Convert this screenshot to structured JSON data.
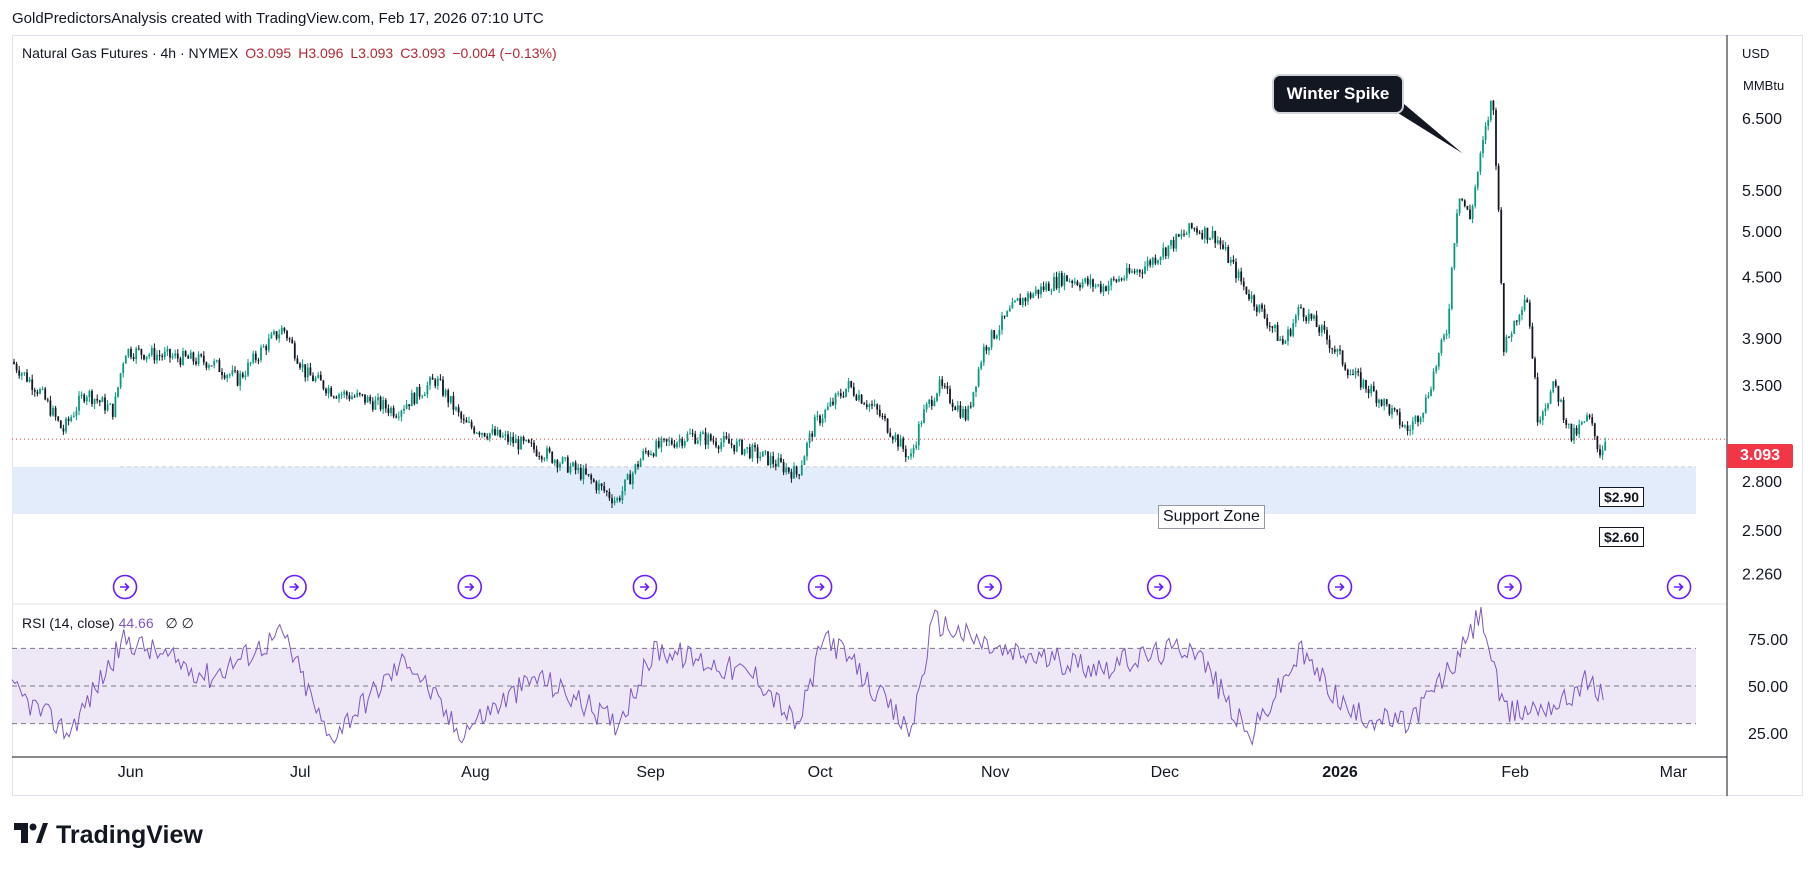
{
  "header": {
    "caption": "GoldPredictorsAnalysis created with TradingView.com, Feb 17, 2026 07:10 UTC"
  },
  "legend": {
    "symbol": "Natural Gas Futures · 4h · NYMEX",
    "open": "O3.095",
    "high": "H3.096",
    "low": "L3.093",
    "close": "C3.093",
    "change": "−0.004 (−0.13%)"
  },
  "axis": {
    "currency": "USD",
    "unit": "MMBtu",
    "current_price": "3.093"
  },
  "annotations": {
    "winter_spike": "Winter Spike",
    "support_zone": "Support Zone",
    "support_top": "$2.90",
    "support_bottom": "$2.60"
  },
  "rsi_legend": {
    "name": "RSI (14, close)",
    "value": "44.66",
    "extra": "∅ ∅"
  },
  "footer": {
    "brand": "TradingView"
  },
  "colors": {
    "candle_up": "#089981",
    "candle_down": "#131722",
    "rsi_line": "#7e57c2",
    "rsi_band": "#ede7f6",
    "support_zone": "#e3ecfb",
    "current_price": "#f23645",
    "event_icon": "#6a1bff"
  },
  "chart_data": [
    {
      "type": "candlestick",
      "title": "Natural Gas Futures · 4h · NYMEX",
      "x_range": [
        "2025-05-11",
        "2026-03-05"
      ],
      "y_scale": "log",
      "ylim": [
        2.26,
        7.0
      ],
      "y_ticks": [
        2.26,
        2.5,
        2.8,
        3.093,
        3.5,
        3.9,
        4.5,
        5.0,
        5.5,
        6.5
      ],
      "y_tick_labels": [
        "2.260",
        "2.500",
        "2.800",
        "3.093",
        "3.500",
        "3.900",
        "4.500",
        "5.000",
        "5.500",
        "6.500"
      ],
      "x_ticks": [
        {
          "label": "Jun",
          "date": "2025-06-01"
        },
        {
          "label": "Jul",
          "date": "2025-07-01"
        },
        {
          "label": "Aug",
          "date": "2025-08-01"
        },
        {
          "label": "Sep",
          "date": "2025-09-01"
        },
        {
          "label": "Oct",
          "date": "2025-10-01"
        },
        {
          "label": "Nov",
          "date": "2025-11-01"
        },
        {
          "label": "Dec",
          "date": "2025-12-01"
        },
        {
          "label": "2026",
          "date": "2026-01-01"
        },
        {
          "label": "Feb",
          "date": "2026-02-01"
        },
        {
          "label": "Mar",
          "date": "2026-03-01"
        }
      ],
      "price_path": [
        [
          "2025-05-11",
          3.7
        ],
        [
          "2025-05-16",
          3.45
        ],
        [
          "2025-05-20",
          3.15
        ],
        [
          "2025-05-24",
          3.45
        ],
        [
          "2025-05-29",
          3.3
        ],
        [
          "2025-05-31",
          3.8
        ],
        [
          "2025-06-07",
          3.75
        ],
        [
          "2025-06-15",
          3.7
        ],
        [
          "2025-06-20",
          3.55
        ],
        [
          "2025-06-25",
          3.85
        ],
        [
          "2025-06-28",
          4.0
        ],
        [
          "2025-07-02",
          3.6
        ],
        [
          "2025-07-07",
          3.45
        ],
        [
          "2025-07-12",
          3.4
        ],
        [
          "2025-07-18",
          3.3
        ],
        [
          "2025-07-25",
          3.55
        ],
        [
          "2025-07-30",
          3.2
        ],
        [
          "2025-08-06",
          3.1
        ],
        [
          "2025-08-13",
          3.0
        ],
        [
          "2025-08-20",
          2.85
        ],
        [
          "2025-08-26",
          2.68
        ],
        [
          "2025-08-31",
          3.0
        ],
        [
          "2025-09-08",
          3.12
        ],
        [
          "2025-09-16",
          3.05
        ],
        [
          "2025-09-22",
          2.95
        ],
        [
          "2025-09-27",
          2.85
        ],
        [
          "2025-09-30",
          3.2
        ],
        [
          "2025-10-06",
          3.5
        ],
        [
          "2025-10-11",
          3.3
        ],
        [
          "2025-10-17",
          2.95
        ],
        [
          "2025-10-19",
          3.25
        ],
        [
          "2025-10-22",
          3.5
        ],
        [
          "2025-10-27",
          3.25
        ],
        [
          "2025-10-30",
          3.82
        ],
        [
          "2025-11-05",
          4.25
        ],
        [
          "2025-11-13",
          4.5
        ],
        [
          "2025-11-20",
          4.4
        ],
        [
          "2025-11-27",
          4.6
        ],
        [
          "2025-12-06",
          5.05
        ],
        [
          "2025-12-10",
          4.95
        ],
        [
          "2025-12-15",
          4.4
        ],
        [
          "2025-12-22",
          3.85
        ],
        [
          "2025-12-25",
          4.2
        ],
        [
          "2025-12-29",
          3.95
        ],
        [
          "2026-01-03",
          3.6
        ],
        [
          "2026-01-08",
          3.4
        ],
        [
          "2026-01-13",
          3.15
        ],
        [
          "2026-01-16",
          3.35
        ],
        [
          "2026-01-20",
          4.0
        ],
        [
          "2026-01-22",
          5.5
        ],
        [
          "2026-01-24",
          5.15
        ],
        [
          "2026-01-26",
          6.0
        ],
        [
          "2026-01-28",
          6.85
        ],
        [
          "2026-01-30",
          3.8
        ],
        [
          "2026-02-03",
          4.35
        ],
        [
          "2026-02-05",
          3.25
        ],
        [
          "2026-02-08",
          3.5
        ],
        [
          "2026-02-11",
          3.1
        ],
        [
          "2026-02-14",
          3.25
        ],
        [
          "2026-02-16",
          3.0
        ],
        [
          "2026-02-17",
          3.093
        ]
      ],
      "horizontal_lines": [
        {
          "value": 3.093,
          "style": "dotted",
          "label": "3.093"
        }
      ],
      "zones": [
        {
          "name": "Support Zone",
          "from": 2.6,
          "to": 2.9
        }
      ]
    },
    {
      "type": "line",
      "title": "RSI (14, close)",
      "ylim": [
        15,
        95
      ],
      "y_ticks": [
        25,
        50,
        75
      ],
      "band": [
        30,
        70
      ],
      "current": 44.66,
      "x": [
        "2025-05-11",
        "2025-05-21",
        "2025-05-31",
        "2025-06-15",
        "2025-06-28",
        "2025-07-06",
        "2025-07-20",
        "2025-07-29",
        "2025-08-12",
        "2025-08-26",
        "2025-09-02",
        "2025-09-20",
        "2025-09-27",
        "2025-10-02",
        "2025-10-17",
        "2025-10-21",
        "2025-11-02",
        "2025-11-20",
        "2025-12-06",
        "2025-12-16",
        "2025-12-25",
        "2026-01-03",
        "2026-01-13",
        "2026-01-22",
        "2026-01-26",
        "2026-01-30",
        "2026-02-10",
        "2026-02-13",
        "2026-02-17"
      ],
      "values": [
        48,
        25,
        75,
        55,
        78,
        22,
        65,
        25,
        55,
        30,
        70,
        55,
        28,
        78,
        25,
        85,
        68,
        60,
        72,
        22,
        68,
        35,
        30,
        65,
        90,
        35,
        42,
        53,
        44.66
      ]
    }
  ]
}
